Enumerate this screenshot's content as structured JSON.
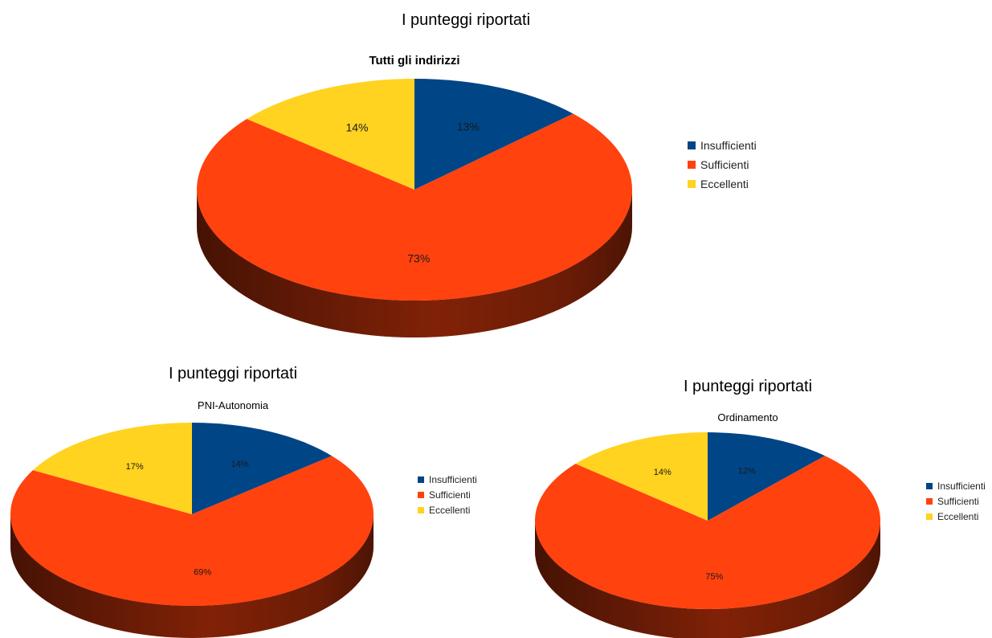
{
  "chart_data": [
    {
      "type": "pie",
      "title": "I punteggi riportati",
      "subtitle": "Tutti gli indirizzi",
      "slices": [
        {
          "label": "Insufficienti",
          "value": 13,
          "value_label": "13%",
          "color": "#004586"
        },
        {
          "label": "Sufficienti",
          "value": 73,
          "value_label": "73%",
          "color": "#ff420e"
        },
        {
          "label": "Eccellenti",
          "value": 14,
          "value_label": "14%",
          "color": "#ffd320"
        }
      ],
      "legend_position": "right",
      "style": "3d"
    },
    {
      "type": "pie",
      "title": "I punteggi riportati",
      "subtitle": "PNI-Autonomia",
      "slices": [
        {
          "label": "Insufficienti",
          "value": 14,
          "value_label": "14%",
          "color": "#004586"
        },
        {
          "label": "Sufficienti",
          "value": 69,
          "value_label": "69%",
          "color": "#ff420e"
        },
        {
          "label": "Eccellenti",
          "value": 17,
          "value_label": "17%",
          "color": "#ffd320"
        }
      ],
      "legend_position": "right",
      "style": "3d"
    },
    {
      "type": "pie",
      "title": "I punteggi riportati",
      "subtitle": "Ordinamento",
      "slices": [
        {
          "label": "Insufficienti",
          "value": 12,
          "value_label": "12%",
          "color": "#004586"
        },
        {
          "label": "Sufficienti",
          "value": 75,
          "value_label": "75%",
          "color": "#ff420e"
        },
        {
          "label": "Eccellenti",
          "value": 14,
          "value_label": "14%",
          "color": "#ffd320"
        }
      ],
      "legend_position": "right",
      "style": "3d"
    }
  ]
}
